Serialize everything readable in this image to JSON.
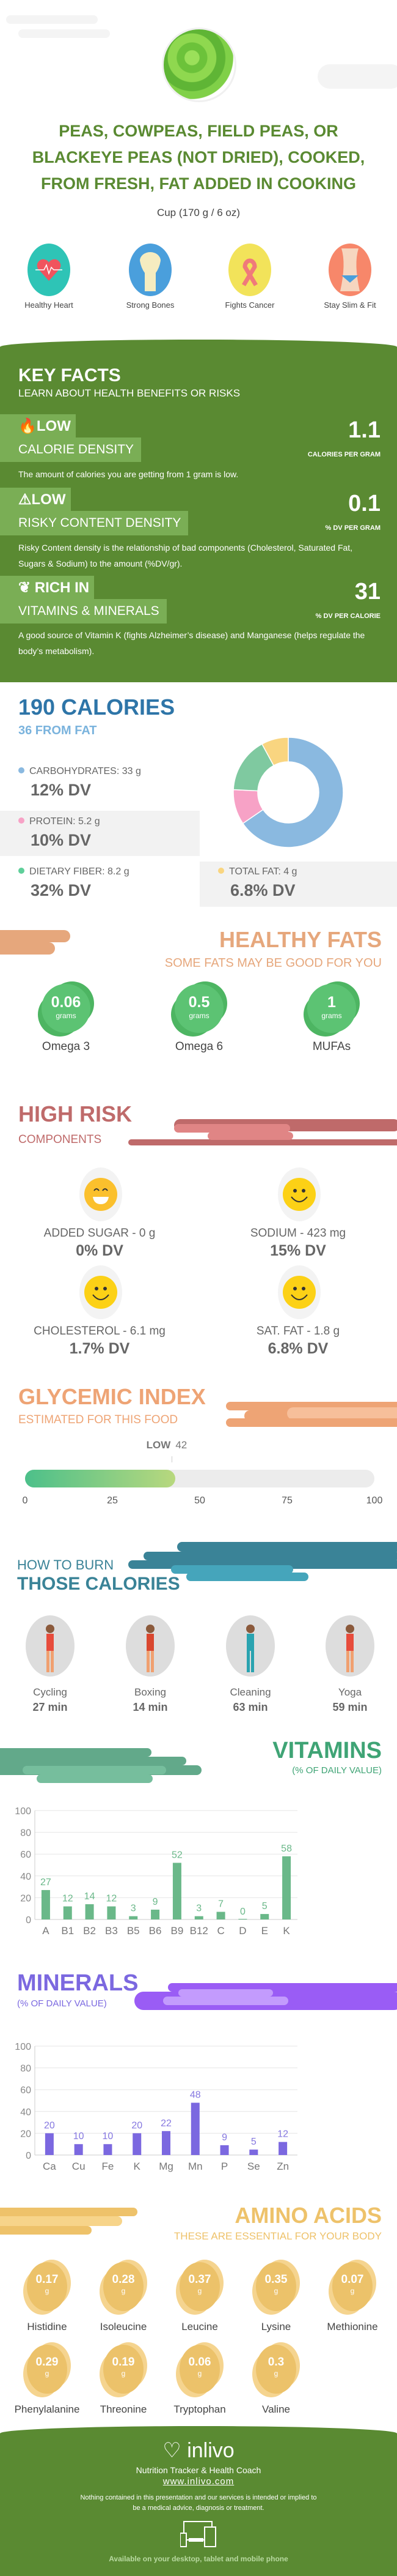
{
  "food": {
    "title": "PEAS, COWPEAS, FIELD PEAS, OR BLACKEYE PEAS (NOT DRIED), COOKED, FROM FRESH, FAT ADDED IN COOKING",
    "serving": "Cup (170 g / 6 oz)"
  },
  "benefits": [
    {
      "icon": "heart-icon",
      "label": "Healthy Heart",
      "color": "#2ec4b6"
    },
    {
      "icon": "bone-icon",
      "label": "Strong Bones",
      "color": "#4a9fdc"
    },
    {
      "icon": "ribbon-icon",
      "label": "Fights Cancer",
      "color": "#f2e35a"
    },
    {
      "icon": "waist-icon",
      "label": "Stay Slim & Fit",
      "color": "#f7876a"
    }
  ],
  "key_facts": {
    "title": "KEY FACTS",
    "subtitle": "LEARN ABOUT HEALTH BENEFITS OR RISKS",
    "items": [
      {
        "icon": "flame-icon",
        "level": "LOW",
        "name": "CALORIE DENSITY",
        "value": "1.1",
        "unit": "CALORIES PER GRAM",
        "desc": "The amount of calories you are getting from 1 gram is low."
      },
      {
        "icon": "warning-icon",
        "level": "LOW",
        "name": "RISKY CONTENT DENSITY",
        "value": "0.1",
        "unit": "% DV PER GRAM",
        "desc": "Risky Content density is the relationship of bad components (Cholesterol, Saturated Fat, Sugars & Sodium) to the amount (%DV/gr)."
      },
      {
        "icon": "leaf-icon",
        "level": "RICH  IN",
        "name": "VITAMINS & MINERALS",
        "value": "31",
        "unit": "% DV PER CALORIE",
        "desc": "A good source of Vitamin K (fights Alzheimer’s disease) and Manganese (helps regulate the body’s metabolism)."
      }
    ]
  },
  "calories": {
    "title": "190 CALORIES",
    "from_fat": "36 FROM FAT",
    "nutrients": [
      {
        "label": "CARBOHYDRATES: 33 g",
        "dv": "12% DV",
        "grams": 33,
        "color": "#8ab9e0"
      },
      {
        "label": "PROTEIN: 5.2 g",
        "dv": "10% DV",
        "grams": 5.2,
        "color": "#f7a2c6"
      },
      {
        "label": "DIETARY FIBER: 8.2 g",
        "dv": "32% DV",
        "grams": 8.2,
        "color": "#7fc9a0"
      },
      {
        "label": "TOTAL FAT: 4 g",
        "dv": "6.8% DV",
        "grams": 4,
        "color": "#f9d580"
      }
    ]
  },
  "healthy_fats": {
    "title": "HEALTHY FATS",
    "subtitle": "SOME FATS MAY BE GOOD FOR YOU",
    "unit": "grams",
    "items": [
      {
        "value": "0.06",
        "label": "Omega 3"
      },
      {
        "value": "0.5",
        "label": "Omega 6"
      },
      {
        "value": "1",
        "label": "MUFAs"
      }
    ]
  },
  "high_risk": {
    "title": "HIGH RISK",
    "subtitle": "COMPONENTS",
    "items": [
      {
        "icon": "grin-emoji-icon",
        "label": "ADDED SUGAR - 0 g",
        "dv": "0% DV"
      },
      {
        "icon": "smile-emoji-icon",
        "label": "SODIUM - 423 mg",
        "dv": "15% DV"
      },
      {
        "icon": "smile-emoji-icon",
        "label": "CHOLESTEROL - 6.1 mg",
        "dv": "1.7% DV"
      },
      {
        "icon": "smile-emoji-icon",
        "label": "SAT. FAT - 1.8 g",
        "dv": "6.8% DV"
      }
    ]
  },
  "glycemic": {
    "title": "GLYCEMIC INDEX",
    "subtitle": "ESTIMATED FOR THIS FOOD",
    "level": "LOW",
    "value": 42,
    "value_label": "42",
    "max": 100,
    "ticks": [
      "0",
      "25",
      "50",
      "75",
      "100"
    ]
  },
  "burn": {
    "title_top": "HOW TO BURN",
    "title_bottom": "THOSE CALORIES",
    "items": [
      {
        "label": "Cycling",
        "time": "27 min"
      },
      {
        "label": "Boxing",
        "time": "14 min"
      },
      {
        "label": "Cleaning",
        "time": "63 min"
      },
      {
        "label": "Yoga",
        "time": "59 min"
      }
    ]
  },
  "chart_data": [
    {
      "type": "bar",
      "title": "VITAMINS",
      "subtitle": "(% OF DAILY VALUE)",
      "categories": [
        "A",
        "B1",
        "B2",
        "B3",
        "B5",
        "B6",
        "B9",
        "B12",
        "C",
        "D",
        "E",
        "K"
      ],
      "values": [
        27,
        12,
        14,
        12,
        3,
        9,
        52,
        3,
        7,
        0,
        5,
        58
      ],
      "ylim": [
        0,
        100
      ],
      "yticks": [
        "0",
        "20",
        "40",
        "60",
        "80",
        "100"
      ],
      "grid": true,
      "color": "#6ab889",
      "label_color": "#6ab889"
    },
    {
      "type": "bar",
      "title": "MINERALS",
      "subtitle": "(% OF DAILY VALUE)",
      "categories": [
        "Ca",
        "Cu",
        "Fe",
        "K",
        "Mg",
        "Mn",
        "P",
        "Se",
        "Zn"
      ],
      "values": [
        20,
        10,
        10,
        20,
        22,
        48,
        9,
        5,
        12
      ],
      "ylim": [
        0,
        100
      ],
      "yticks": [
        "0",
        "20",
        "40",
        "60",
        "80",
        "100"
      ],
      "grid": true,
      "color": "#7b68e0",
      "label_color": "#8577e0"
    }
  ],
  "amino": {
    "title": "AMINO ACIDS",
    "subtitle": "THESE ARE ESSENTIAL FOR YOUR BODY",
    "unit": "g",
    "items": [
      {
        "value": "0.17",
        "label": "Histidine"
      },
      {
        "value": "0.28",
        "label": "Isoleucine"
      },
      {
        "value": "0.37",
        "label": "Leucine"
      },
      {
        "value": "0.35",
        "label": "Lysine"
      },
      {
        "value": "0.07",
        "label": "Methionine"
      },
      {
        "value": "0.29",
        "label": "Phenylalanine"
      },
      {
        "value": "0.19",
        "label": "Threonine"
      },
      {
        "value": "0.06",
        "label": "Tryptophan"
      },
      {
        "value": "0.3",
        "label": "Valine"
      }
    ]
  },
  "footer": {
    "brand": "inlivo",
    "tagline": "Nutrition Tracker & Health Coach",
    "url": "www.inlivo.com",
    "disclaimer": "Nothing contained in this presentation and our services is intended or implied to be a medical advice, diagnosis or treatment.",
    "available": "Available on your desktop, tablet and mobile phone"
  }
}
